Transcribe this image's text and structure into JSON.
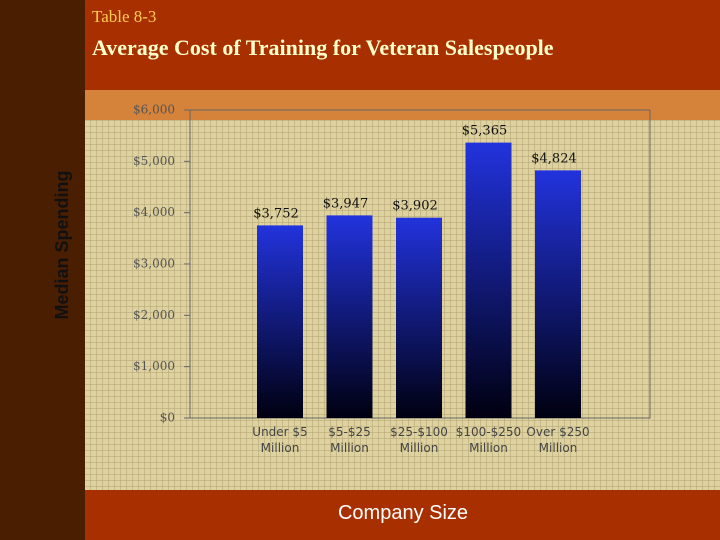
{
  "chart_data": {
    "type": "bar",
    "subtitle": "Table 8-3",
    "title": "Average Cost of Training for Veteran Salespeople",
    "y_label": "Median Spending",
    "x_label": "Company Size",
    "categories": [
      "Under $5 Million",
      "$5-$25 Million",
      "$25-$100 Million",
      "$100-$250 Million",
      "Over $250 Million"
    ],
    "values": [
      3752,
      3947,
      3902,
      5365,
      4824
    ],
    "value_labels": [
      "$3,752",
      "$3,947",
      "$3,902",
      "$5,365",
      "$4,824"
    ],
    "color": "#2233dd",
    "ylim": [
      0,
      6000
    ],
    "yticks": [
      {
        "value": 0,
        "label": "$0"
      },
      {
        "value": 1000,
        "label": "$1,000"
      },
      {
        "value": 2000,
        "label": "$2,000"
      },
      {
        "value": 3000,
        "label": "$3,000"
      },
      {
        "value": 4000,
        "label": "$4,000"
      },
      {
        "value": 5000,
        "label": "$5,000"
      },
      {
        "value": 6000,
        "label": "$6,000"
      }
    ]
  }
}
